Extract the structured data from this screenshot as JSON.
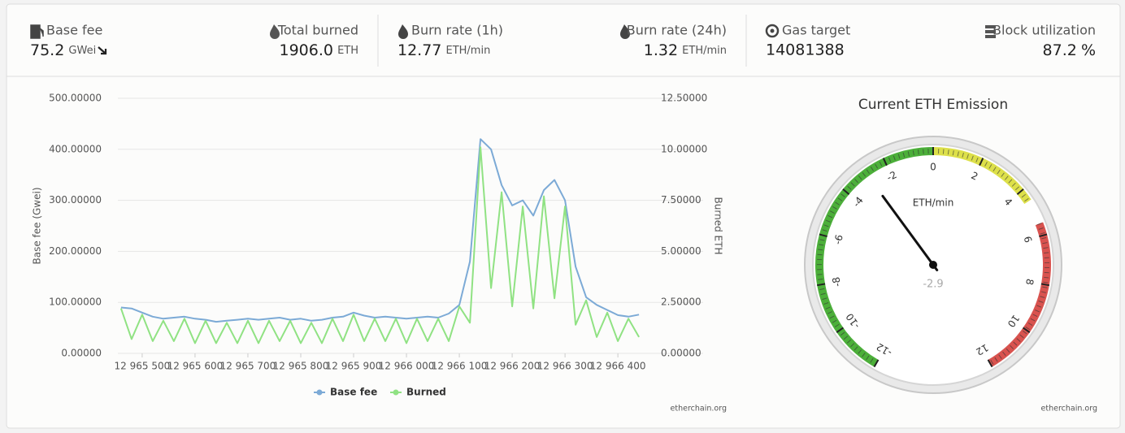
{
  "stats": [
    {
      "label": "Base fee",
      "value": "75.2",
      "unit": "GWei"
    },
    {
      "label": "Total burned",
      "value": "1906.0",
      "unit": "ETH"
    },
    {
      "label": "Burn rate (1h)",
      "value": "12.77",
      "unit": "ETH/min"
    },
    {
      "label": "Burn rate (24h)",
      "value": "1.32",
      "unit": "ETH/min"
    },
    {
      "label": "Gas target",
      "value": "14081388"
    },
    {
      "label": "Block utilization",
      "value": "87.2",
      "unit": "%"
    }
  ],
  "chart_data": [
    {
      "type": "line",
      "x": [
        12965460,
        12965480,
        12965500,
        12965520,
        12965540,
        12965560,
        12965580,
        12965600,
        12965620,
        12965640,
        12965660,
        12965680,
        12965700,
        12965720,
        12965740,
        12965760,
        12965780,
        12965800,
        12965820,
        12965840,
        12965860,
        12965880,
        12965900,
        12965920,
        12965940,
        12965960,
        12965980,
        12966000,
        12966020,
        12966040,
        12966060,
        12966080,
        12966100,
        12966120,
        12966140,
        12966160,
        12966180,
        12966200,
        12966220,
        12966240,
        12966260,
        12966280,
        12966300,
        12966320,
        12966340,
        12966360,
        12966380,
        12966400,
        12966420,
        12966440
      ],
      "xlim": [
        12965454,
        12966449
      ],
      "xticks": [
        {
          "value": 12965500,
          "label": "12 965 500"
        },
        {
          "value": 12965600,
          "label": "12 965 600"
        },
        {
          "value": 12965700,
          "label": "12 965 700"
        },
        {
          "value": 12965800,
          "label": "12 965 800"
        },
        {
          "value": 12965900,
          "label": "12 965 900"
        },
        {
          "value": 12966000,
          "label": "12 966 000"
        },
        {
          "value": 12966100,
          "label": "12 966 100"
        },
        {
          "value": 12966200,
          "label": "12 966 200"
        },
        {
          "value": 12966300,
          "label": "12 966 300"
        },
        {
          "value": 12966400,
          "label": "12 966 400"
        }
      ],
      "ylabel": "Base fee (Gwei)",
      "ylim": [
        0,
        500
      ],
      "yticks": [
        {
          "value": 0,
          "label": "0.00000"
        },
        {
          "value": 100,
          "label": "100.00000"
        },
        {
          "value": 200,
          "label": "200.00000"
        },
        {
          "value": 300,
          "label": "300.00000"
        },
        {
          "value": 400,
          "label": "400.00000"
        },
        {
          "value": 500,
          "label": "500.00000"
        }
      ],
      "y2label": "Burned ETH",
      "y2lim": [
        0,
        12.5
      ],
      "y2ticks": [
        {
          "value": 0,
          "label": "0.00000"
        },
        {
          "value": 2.5,
          "label": "2.50000"
        },
        {
          "value": 5,
          "label": "5.00000"
        },
        {
          "value": 7.5,
          "label": "7.50000"
        },
        {
          "value": 10,
          "label": "10.00000"
        },
        {
          "value": 12.5,
          "label": "12.50000"
        }
      ],
      "grid": true,
      "legend": "bottom",
      "series": [
        {
          "name": "Base fee",
          "color": "#7caad6",
          "values": [
            90,
            88,
            80,
            72,
            68,
            70,
            72,
            68,
            66,
            62,
            64,
            66,
            68,
            66,
            68,
            70,
            66,
            68,
            64,
            66,
            70,
            72,
            80,
            74,
            70,
            72,
            70,
            68,
            70,
            72,
            70,
            78,
            95,
            180,
            420,
            400,
            330,
            290,
            300,
            270,
            320,
            340,
            300,
            170,
            110,
            95,
            85,
            75,
            72,
            76
          ]
        },
        {
          "name": "Burned",
          "color": "#90e283",
          "axis": "y2",
          "values": [
            2.2,
            0.7,
            1.9,
            0.6,
            1.6,
            0.6,
            1.7,
            0.5,
            1.6,
            0.5,
            1.5,
            0.5,
            1.6,
            0.5,
            1.6,
            0.6,
            1.6,
            0.5,
            1.5,
            0.5,
            1.7,
            0.6,
            1.9,
            0.6,
            1.7,
            0.6,
            1.7,
            0.5,
            1.7,
            0.6,
            1.7,
            0.6,
            2.3,
            1.5,
            10.1,
            3.2,
            7.9,
            2.3,
            7.2,
            2.2,
            7.7,
            2.7,
            7.2,
            1.4,
            2.6,
            0.8,
            2.0,
            0.6,
            1.7,
            0.8
          ]
        }
      ],
      "credit": "etherchain.org"
    },
    {
      "type": "gauge",
      "title": "Current ETH Emission",
      "unit": "ETH/min",
      "value": -2.9,
      "lim": [
        -12,
        12
      ],
      "ticks": [
        -12,
        -10,
        -8,
        -6,
        -4,
        -2,
        0,
        2,
        4,
        6,
        8,
        10,
        12
      ],
      "bands": [
        {
          "from": -12,
          "to": 0,
          "color": "#4caf3a"
        },
        {
          "from": 0,
          "to": 4.5,
          "color": "#dde04a"
        },
        {
          "from": 5.5,
          "to": 12,
          "color": "#d9534f"
        }
      ],
      "credit": "etherchain.org"
    }
  ]
}
